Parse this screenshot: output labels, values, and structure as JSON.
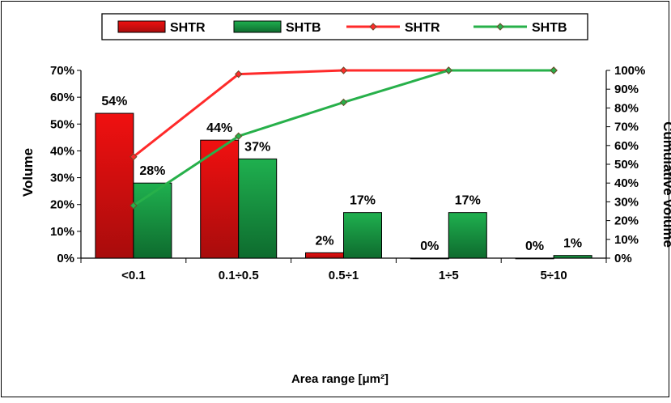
{
  "chart_data": {
    "type": "bar",
    "categories": [
      "<0.1",
      "0.1÷0.5",
      "0.5÷1",
      "1÷5",
      "5÷10"
    ],
    "series": [
      {
        "name": "SHTR",
        "type": "bar",
        "axis": "left",
        "values": [
          54,
          44,
          2,
          0,
          0
        ],
        "labels": [
          "54%",
          "44%",
          "2%",
          "0%",
          "0%"
        ],
        "color": "#e3151a"
      },
      {
        "name": "SHTB",
        "type": "bar",
        "axis": "left",
        "values": [
          28,
          37,
          17,
          17,
          1
        ],
        "labels": [
          "28%",
          "37%",
          "17%",
          "17%",
          "1%"
        ],
        "color": "#1a9a4a"
      },
      {
        "name": "SHTR",
        "type": "line",
        "axis": "right",
        "values": [
          54,
          98,
          100,
          100,
          100
        ],
        "color": "#ff2a2a"
      },
      {
        "name": "SHTB",
        "type": "line",
        "axis": "right",
        "values": [
          28,
          65,
          83,
          100,
          100
        ],
        "color": "#27b04a"
      }
    ],
    "xlabel": "Area range [μm²]",
    "ylabel": "Volume",
    "ylabel_right": "Cumulative volume",
    "ylim": [
      0,
      70
    ],
    "ylim_right": [
      0,
      100
    ],
    "yticks": [
      "0%",
      "10%",
      "20%",
      "30%",
      "40%",
      "50%",
      "60%",
      "70%"
    ],
    "yticks_right": [
      "0%",
      "10%",
      "20%",
      "30%",
      "40%",
      "50%",
      "60%",
      "70%",
      "80%",
      "90%",
      "100%"
    ],
    "legend_position": "top",
    "legend": [
      "SHTR",
      "SHTB",
      "SHTR",
      "SHTB"
    ],
    "grid": false
  }
}
